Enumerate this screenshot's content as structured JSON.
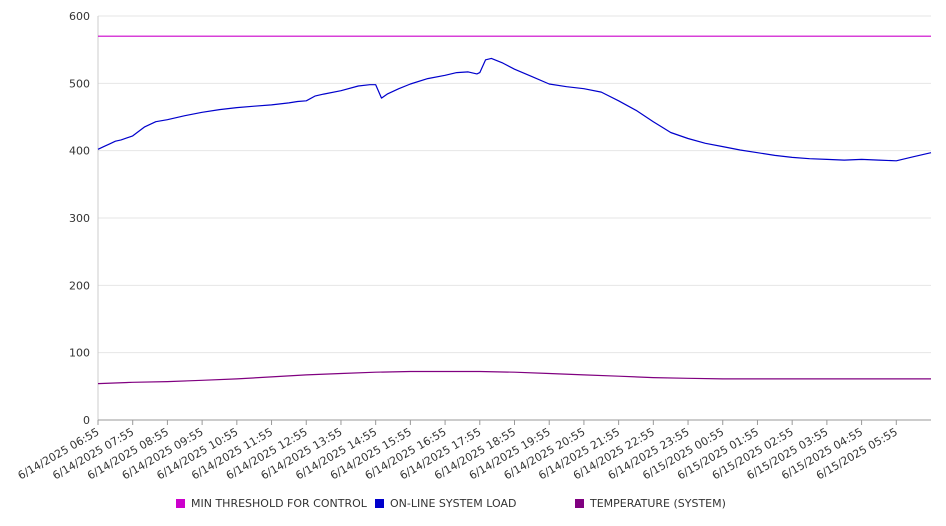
{
  "chart_data": {
    "type": "line",
    "x_tick_labels": [
      "6/14/2025 06:55",
      "6/14/2025 07:55",
      "6/14/2025 08:55",
      "6/14/2025 09:55",
      "6/14/2025 10:55",
      "6/14/2025 11:55",
      "6/14/2025 12:55",
      "6/14/2025 13:55",
      "6/14/2025 14:55",
      "6/14/2025 15:55",
      "6/14/2025 16:55",
      "6/14/2025 17:55",
      "6/14/2025 18:55",
      "6/14/2025 19:55",
      "6/14/2025 20:55",
      "6/14/2025 21:55",
      "6/14/2025 22:55",
      "6/14/2025 23:55",
      "6/15/2025 00:55",
      "6/15/2025 01:55",
      "6/15/2025 02:55",
      "6/15/2025 03:55",
      "6/15/2025 04:55",
      "6/15/2025 05:55"
    ],
    "x_range": [
      "6/14/2025 06:55",
      "6/15/2025 06:55"
    ],
    "ylim": [
      0,
      600
    ],
    "y_ticks": [
      0,
      100,
      200,
      300,
      400,
      500,
      600
    ],
    "grid": "horizontal",
    "legend_position": "bottom",
    "series": [
      {
        "name": "MIN THRESHOLD FOR CONTROL",
        "color": "#cc00cc",
        "x": [
          "6/14/2025 06:55",
          "6/15/2025 06:55"
        ],
        "y": [
          570,
          570
        ]
      },
      {
        "name": "ON-LINE SYSTEM LOAD",
        "color": "#0000cc",
        "x": [
          "6/14/2025 06:55",
          "6/14/2025 07:05",
          "6/14/2025 07:15",
          "6/14/2025 07:25",
          "6/14/2025 07:35",
          "6/14/2025 07:55",
          "6/14/2025 08:15",
          "6/14/2025 08:35",
          "6/14/2025 08:55",
          "6/14/2025 09:25",
          "6/14/2025 09:55",
          "6/14/2025 10:25",
          "6/14/2025 10:55",
          "6/14/2025 11:25",
          "6/14/2025 11:55",
          "6/14/2025 12:25",
          "6/14/2025 12:40",
          "6/14/2025 12:55",
          "6/14/2025 13:10",
          "6/14/2025 13:25",
          "6/14/2025 13:55",
          "6/14/2025 14:25",
          "6/14/2025 14:45",
          "6/14/2025 14:55",
          "6/14/2025 15:05",
          "6/14/2025 15:15",
          "6/14/2025 15:35",
          "6/14/2025 15:55",
          "6/14/2025 16:25",
          "6/14/2025 16:55",
          "6/14/2025 17:15",
          "6/14/2025 17:35",
          "6/14/2025 17:50",
          "6/14/2025 17:55",
          "6/14/2025 18:05",
          "6/14/2025 18:15",
          "6/14/2025 18:35",
          "6/14/2025 18:55",
          "6/14/2025 19:25",
          "6/14/2025 19:55",
          "6/14/2025 20:25",
          "6/14/2025 20:55",
          "6/14/2025 21:25",
          "6/14/2025 21:55",
          "6/14/2025 22:25",
          "6/14/2025 22:55",
          "6/14/2025 23:25",
          "6/14/2025 23:55",
          "6/15/2025 00:25",
          "6/15/2025 00:55",
          "6/15/2025 01:25",
          "6/15/2025 01:55",
          "6/15/2025 02:25",
          "6/15/2025 02:55",
          "6/15/2025 03:25",
          "6/15/2025 03:55",
          "6/15/2025 04:25",
          "6/15/2025 04:55",
          "6/15/2025 05:25",
          "6/15/2025 05:55",
          "6/15/2025 06:25",
          "6/15/2025 06:55"
        ],
        "y": [
          402,
          406,
          410,
          414,
          416,
          422,
          435,
          443,
          446,
          452,
          457,
          461,
          464,
          466,
          468,
          471,
          473,
          474,
          481,
          484,
          489,
          496,
          498,
          498,
          478,
          484,
          492,
          499,
          507,
          512,
          516,
          517,
          514,
          516,
          535,
          537,
          530,
          521,
          510,
          499,
          495,
          492,
          487,
          474,
          460,
          443,
          427,
          418,
          411,
          406,
          401,
          397,
          393,
          390,
          388,
          387,
          386,
          387,
          386,
          385,
          391,
          397
        ]
      },
      {
        "name": "TEMPERATURE (SYSTEM)",
        "color": "#800080",
        "x": [
          "6/14/2025 06:55",
          "6/14/2025 07:55",
          "6/14/2025 08:55",
          "6/14/2025 09:55",
          "6/14/2025 10:55",
          "6/14/2025 11:55",
          "6/14/2025 12:55",
          "6/14/2025 13:55",
          "6/14/2025 14:55",
          "6/14/2025 15:55",
          "6/14/2025 16:55",
          "6/14/2025 17:55",
          "6/14/2025 18:55",
          "6/14/2025 19:55",
          "6/14/2025 20:55",
          "6/14/2025 21:55",
          "6/14/2025 22:55",
          "6/14/2025 23:55",
          "6/15/2025 00:55",
          "6/15/2025 01:55",
          "6/15/2025 02:55",
          "6/15/2025 03:55",
          "6/15/2025 04:55",
          "6/15/2025 05:55",
          "6/15/2025 06:55"
        ],
        "y": [
          54,
          56,
          57,
          59,
          61,
          64,
          67,
          69,
          71,
          72,
          72,
          72,
          71,
          69,
          67,
          65,
          63,
          62,
          61,
          61,
          61,
          61,
          61,
          61,
          61
        ]
      }
    ]
  }
}
